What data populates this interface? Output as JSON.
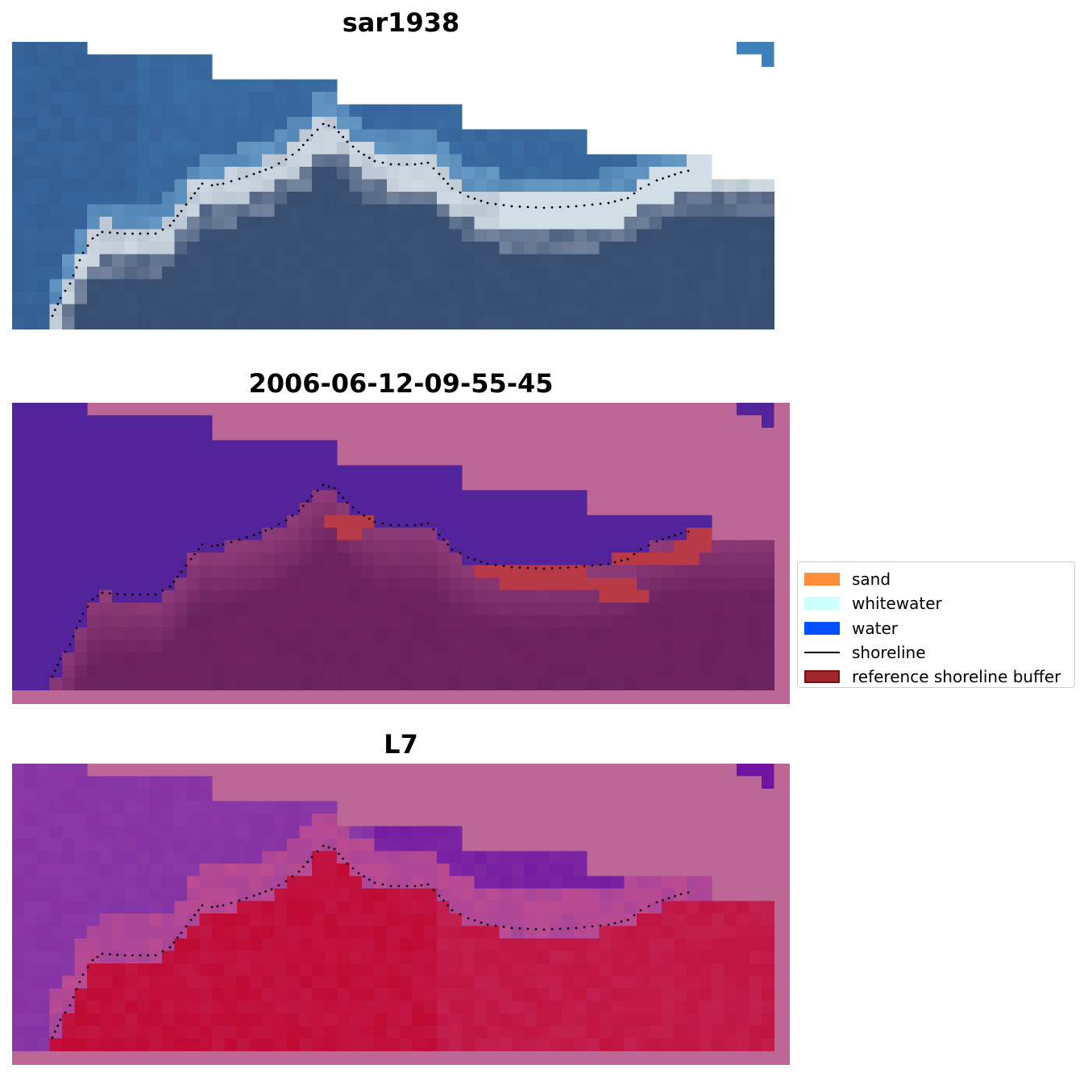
{
  "panels": [
    {
      "title": "sar1938",
      "view": "rgb-image"
    },
    {
      "title": "2006-06-12-09-55-45",
      "view": "classified-image"
    },
    {
      "title": "L7",
      "view": "index-image"
    }
  ],
  "legend": {
    "placement": "center-right",
    "items": [
      {
        "label": "sand",
        "color": "#ff8c3a",
        "kind": "patch"
      },
      {
        "label": "whitewater",
        "color": "#ccffff",
        "kind": "patch"
      },
      {
        "label": "water",
        "color": "#0050ff",
        "kind": "patch"
      },
      {
        "label": "shoreline",
        "color": "#000000",
        "kind": "line"
      },
      {
        "label": "reference shoreline buffer",
        "color": "#a1282a",
        "edge": "#7a1012",
        "kind": "patch"
      }
    ]
  },
  "colors": {
    "nodata": "#bd6796",
    "water_rgb": "#3b6da6",
    "sea_class": "#52239b",
    "land_class": "#6d2460",
    "buffer_class": "#b83a46",
    "index_low": "#8a3aa6",
    "index_high": "#c00a34",
    "shoreline_dots": "#000000"
  }
}
